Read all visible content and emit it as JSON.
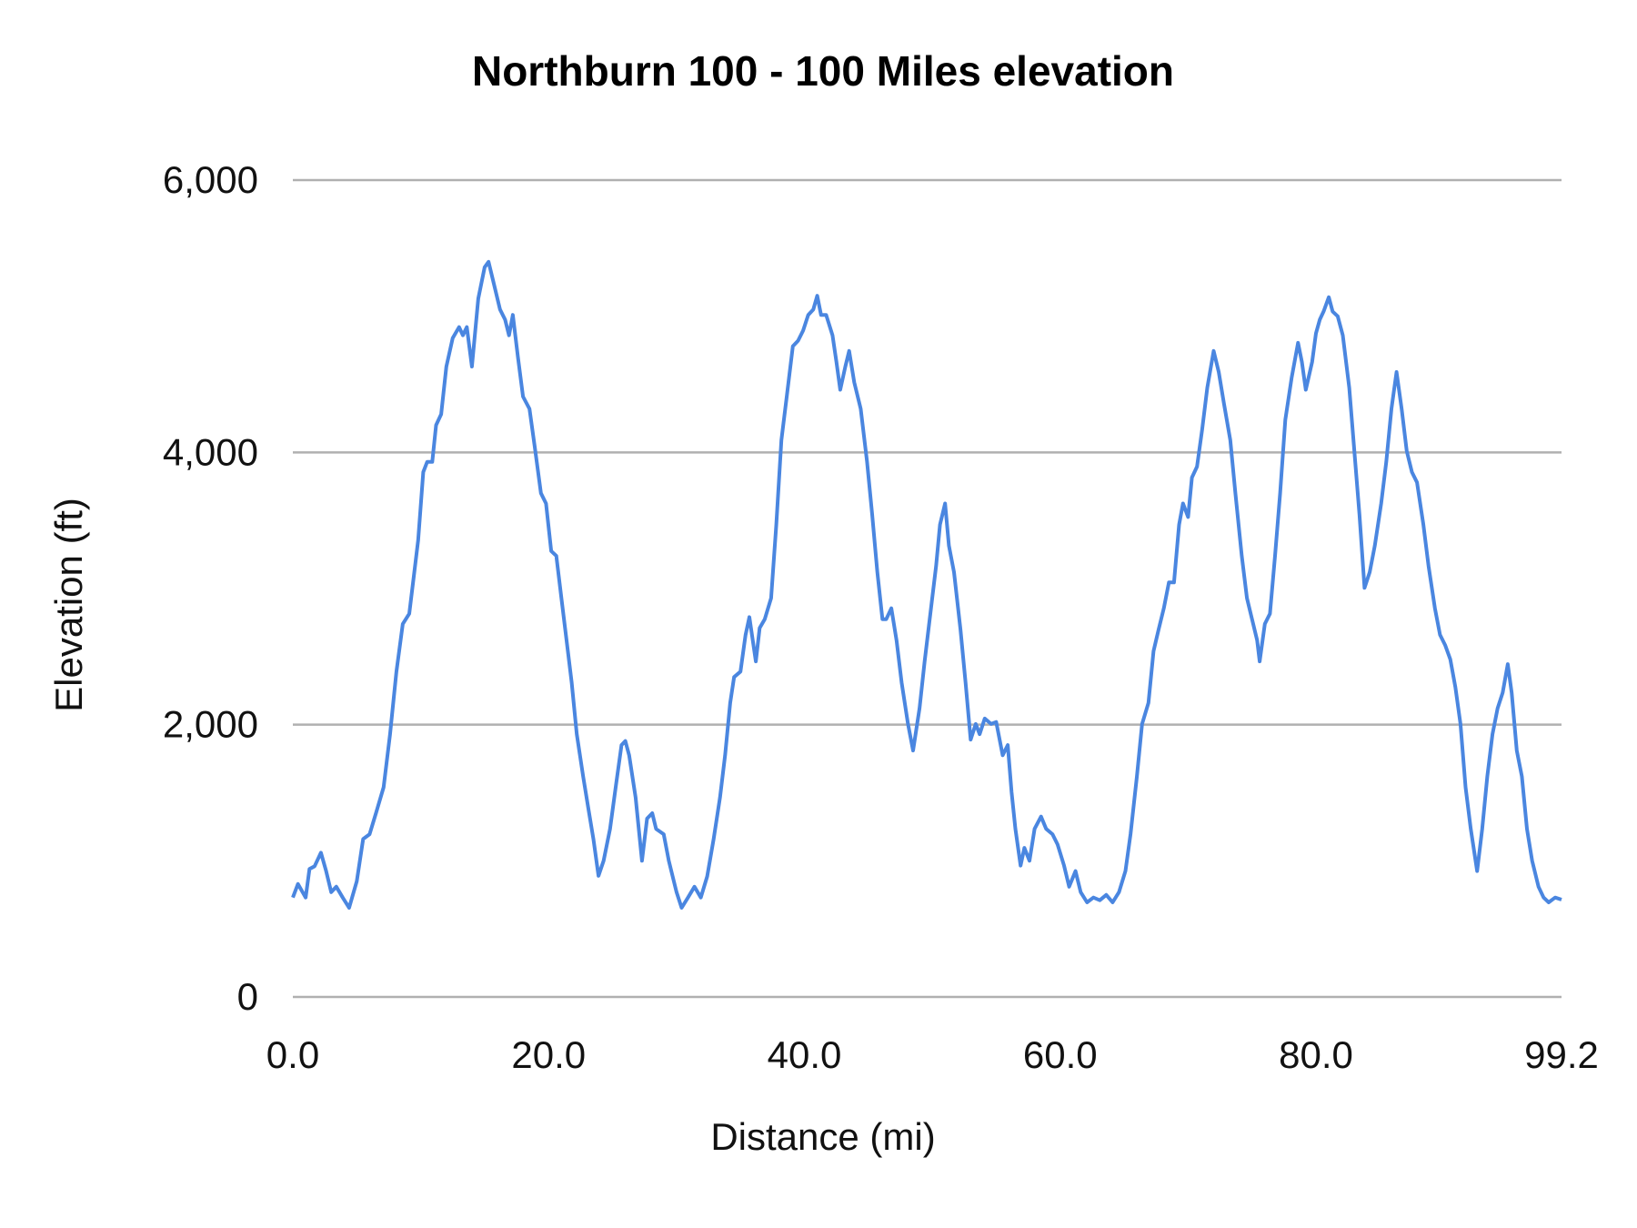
{
  "chart_data": {
    "type": "line",
    "title": "Northburn 100 - 100 Miles elevation",
    "xlabel": "Distance (mi)",
    "ylabel": "Elevation (ft)",
    "xlim": [
      0,
      99.2
    ],
    "ylim": [
      0,
      6000
    ],
    "xticks": [
      "0.0",
      "20.0",
      "40.0",
      "60.0",
      "80.0",
      "99.2"
    ],
    "xtick_values": [
      0,
      20,
      40,
      60,
      80,
      99.2
    ],
    "yticks": [
      "0",
      "2,000",
      "4,000",
      "6,000"
    ],
    "ytick_values": [
      0,
      2000,
      4000,
      6000
    ],
    "grid": "horizontal",
    "legend": "none",
    "line_color": "#4a86e0",
    "series": [
      {
        "x": [
          0,
          0.4,
          1.0,
          1.3,
          1.7,
          2.2,
          2.6,
          3.0,
          3.4,
          3.9,
          4.4,
          5.0,
          5.5,
          6.0,
          6.5,
          7.1,
          7.6,
          8.1,
          8.6,
          9.1,
          9.4,
          9.8,
          10.2,
          10.5,
          10.9,
          11.2,
          11.6,
          12.0,
          12.5,
          13.0,
          13.3,
          13.6,
          14.0,
          14.5,
          15.0,
          15.3,
          15.7,
          16.2,
          16.6,
          16.9,
          17.2,
          17.6,
          18.0,
          18.5,
          18.9,
          19.4,
          19.8,
          20.2,
          20.6,
          21.0,
          21.3,
          21.8,
          22.2,
          22.7,
          23.1,
          23.5,
          23.9,
          24.3,
          24.8,
          25.3,
          25.7,
          26.0,
          26.3,
          26.8,
          27.3,
          27.7,
          28.1,
          28.4,
          29.0,
          29.4,
          30.0,
          30.4,
          30.9,
          31.4,
          31.9,
          32.4,
          32.9,
          33.4,
          33.8,
          34.2,
          34.5,
          35.0,
          35.4,
          35.7,
          36.2,
          36.5,
          36.9,
          37.4,
          37.8,
          38.2,
          38.6,
          39.1,
          39.5,
          39.9,
          40.3,
          40.7,
          41.0,
          41.3,
          41.7,
          42.2,
          42.5,
          42.8,
          43.2,
          43.5,
          43.9,
          44.4,
          44.9,
          45.3,
          45.7,
          46.1,
          46.4,
          46.8,
          47.2,
          47.6,
          48.1,
          48.5,
          49.0,
          49.4,
          49.9,
          50.3,
          50.6,
          51.0,
          51.3,
          51.7,
          52.2,
          52.6,
          53.0,
          53.4,
          53.7,
          54.1,
          54.6,
          55.0,
          55.5,
          55.9,
          56.2,
          56.5,
          56.9,
          57.2,
          57.6,
          58.0,
          58.5,
          58.9,
          59.4,
          59.8,
          60.3,
          60.7,
          61.2,
          61.6,
          62.1,
          62.6,
          63.1,
          63.6,
          64.1,
          64.6,
          65.1,
          65.5,
          66.0,
          66.4,
          66.9,
          67.3,
          67.7,
          68.1,
          68.5,
          68.9,
          69.3,
          69.6,
          70.0,
          70.3,
          70.7,
          71.1,
          71.5,
          72.0,
          72.4,
          72.8,
          73.3,
          73.7,
          74.2,
          74.6,
          75.0,
          75.4,
          75.6,
          76.0,
          76.4,
          76.8,
          77.2,
          77.6,
          78.1,
          78.6,
          78.9,
          79.2,
          79.7,
          80.0,
          80.3,
          80.6,
          81.0,
          81.3,
          81.7,
          82.1,
          82.6,
          83.0,
          83.4,
          83.8,
          84.2,
          84.6,
          85.1,
          85.5,
          85.9,
          86.3,
          86.7,
          87.1,
          87.5,
          87.9,
          88.4,
          88.8,
          89.3,
          89.7,
          90.1,
          90.5,
          90.9,
          91.3,
          91.7,
          92.1,
          92.6,
          93.0,
          93.4,
          93.8,
          94.2,
          94.6,
          95.0,
          95.3,
          95.7,
          96.1,
          96.5,
          96.9,
          97.4,
          97.8,
          98.2,
          98.7,
          99.2
        ],
        "y": [
          730,
          830,
          730,
          940,
          960,
          1060,
          925,
          770,
          810,
          730,
          655,
          850,
          1160,
          1195,
          1350,
          1540,
          1930,
          2390,
          2740,
          2815,
          3045,
          3355,
          3855,
          3930,
          3930,
          4200,
          4280,
          4630,
          4840,
          4920,
          4860,
          4920,
          4630,
          5130,
          5360,
          5400,
          5245,
          5050,
          4975,
          4860,
          5010,
          4700,
          4410,
          4320,
          4050,
          3700,
          3625,
          3275,
          3240,
          2930,
          2700,
          2310,
          1930,
          1620,
          1390,
          1160,
          890,
          1000,
          1235,
          1580,
          1850,
          1880,
          1775,
          1465,
          1000,
          1310,
          1350,
          1235,
          1195,
          1000,
          770,
          655,
          730,
          810,
          730,
          885,
          1160,
          1465,
          1775,
          2160,
          2350,
          2390,
          2660,
          2790,
          2465,
          2710,
          2775,
          2930,
          3470,
          4090,
          4395,
          4780,
          4820,
          4895,
          5010,
          5050,
          5150,
          5010,
          5010,
          4860,
          4665,
          4460,
          4630,
          4745,
          4515,
          4320,
          3930,
          3545,
          3120,
          2775,
          2775,
          2855,
          2620,
          2310,
          2005,
          1810,
          2120,
          2465,
          2855,
          3165,
          3470,
          3625,
          3315,
          3120,
          2700,
          2310,
          1890,
          2005,
          1930,
          2045,
          2005,
          2020,
          1775,
          1850,
          1505,
          1235,
          965,
          1095,
          1000,
          1235,
          1325,
          1235,
          1195,
          1120,
          965,
          810,
          925,
          770,
          695,
          730,
          710,
          750,
          695,
          770,
          925,
          1195,
          1620,
          2005,
          2160,
          2540,
          2700,
          2855,
          3045,
          3045,
          3470,
          3625,
          3525,
          3815,
          3895,
          4165,
          4475,
          4745,
          4590,
          4360,
          4090,
          3700,
          3240,
          2930,
          2775,
          2620,
          2465,
          2740,
          2815,
          3240,
          3700,
          4240,
          4550,
          4805,
          4665,
          4460,
          4665,
          4875,
          4975,
          5035,
          5140,
          5035,
          5000,
          4860,
          4475,
          4010,
          3545,
          3005,
          3120,
          3315,
          3625,
          3930,
          4320,
          4590,
          4320,
          4010,
          3855,
          3780,
          3470,
          3165,
          2855,
          2660,
          2585,
          2480,
          2275,
          2005,
          1540,
          1235,
          925,
          1235,
          1620,
          1930,
          2120,
          2235,
          2445,
          2235,
          1810,
          1620,
          1235,
          1000,
          810,
          730,
          695,
          730,
          715
        ]
      }
    ]
  }
}
